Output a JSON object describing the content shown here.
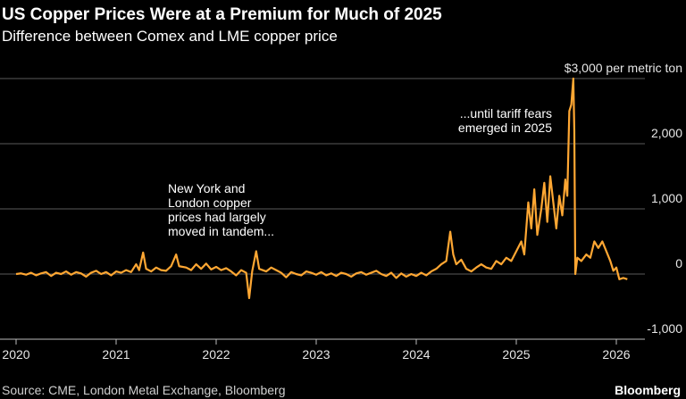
{
  "chart_data": {
    "type": "line",
    "title": "US Copper Prices Were at a Premium for Much of 2025",
    "subtitle": "Difference between Comex and LME copper price",
    "source": "Source: CME, London Metal Exchange, Bloomberg",
    "brand": "Bloomberg",
    "annotations": [
      {
        "lines": [
          "New York and",
          "London copper",
          "prices had largely",
          "moved in tandem..."
        ]
      },
      {
        "lines": [
          "...until tariff fears",
          "emerged in 2025"
        ]
      }
    ],
    "xlim": [
      2020,
      2026.5
    ],
    "xticks": [
      2020,
      2021,
      2022,
      2023,
      2024,
      2025,
      2026
    ],
    "ylim": [
      -1000,
      3000
    ],
    "yticks": [
      {
        "value": -1000,
        "label": "-1,000"
      },
      0,
      {
        "value": 1000,
        "label": "1,000"
      },
      {
        "value": 2000,
        "label": "2,000"
      },
      {
        "value": 3000,
        "label": "$3,000 per metric ton"
      }
    ],
    "grid": true,
    "series": [
      {
        "color": "#ffa733",
        "x": [
          2020.0,
          2020.05,
          2020.1,
          2020.15,
          2020.2,
          2020.25,
          2020.3,
          2020.35,
          2020.4,
          2020.45,
          2020.5,
          2020.55,
          2020.6,
          2020.65,
          2020.7,
          2020.75,
          2020.8,
          2020.85,
          2020.9,
          2020.95,
          2021.0,
          2021.05,
          2021.1,
          2021.15,
          2021.2,
          2021.23,
          2021.27,
          2021.3,
          2021.35,
          2021.4,
          2021.45,
          2021.5,
          2021.55,
          2021.6,
          2021.63,
          2021.7,
          2021.75,
          2021.8,
          2021.85,
          2021.9,
          2021.95,
          2022.0,
          2022.05,
          2022.1,
          2022.15,
          2022.2,
          2022.25,
          2022.3,
          2022.33,
          2022.36,
          2022.4,
          2022.43,
          2022.5,
          2022.55,
          2022.6,
          2022.65,
          2022.7,
          2022.75,
          2022.8,
          2022.85,
          2022.9,
          2022.95,
          2023.0,
          2023.05,
          2023.1,
          2023.15,
          2023.2,
          2023.25,
          2023.3,
          2023.35,
          2023.4,
          2023.45,
          2023.5,
          2023.55,
          2023.6,
          2023.65,
          2023.7,
          2023.75,
          2023.8,
          2023.85,
          2023.9,
          2023.95,
          2024.0,
          2024.05,
          2024.1,
          2024.15,
          2024.2,
          2024.25,
          2024.3,
          2024.34,
          2024.37,
          2024.4,
          2024.45,
          2024.5,
          2024.55,
          2024.6,
          2024.65,
          2024.7,
          2024.75,
          2024.8,
          2024.85,
          2024.9,
          2024.95,
          2025.0,
          2025.05,
          2025.08,
          2025.12,
          2025.15,
          2025.18,
          2025.21,
          2025.25,
          2025.28,
          2025.31,
          2025.34,
          2025.37,
          2025.4,
          2025.43,
          2025.46,
          2025.49,
          2025.51,
          2025.53,
          2025.55,
          2025.57,
          2025.58,
          2025.59,
          2025.61,
          2025.65,
          2025.7,
          2025.74,
          2025.78,
          2025.82,
          2025.86,
          2025.9,
          2025.94,
          2025.97,
          2026.0,
          2026.03,
          2026.07,
          2026.11
        ],
        "values": [
          0,
          10,
          -10,
          20,
          -20,
          10,
          30,
          -30,
          20,
          0,
          40,
          -10,
          30,
          10,
          -40,
          20,
          50,
          0,
          30,
          -20,
          40,
          20,
          60,
          30,
          150,
          60,
          330,
          80,
          40,
          100,
          60,
          50,
          120,
          300,
          120,
          100,
          60,
          150,
          80,
          160,
          70,
          110,
          60,
          90,
          40,
          -20,
          60,
          20,
          -370,
          40,
          350,
          80,
          40,
          100,
          60,
          20,
          -50,
          30,
          0,
          -20,
          40,
          20,
          -10,
          30,
          -20,
          10,
          -30,
          20,
          0,
          -40,
          10,
          30,
          -10,
          20,
          50,
          0,
          -30,
          20,
          -60,
          10,
          -40,
          0,
          -30,
          20,
          -20,
          40,
          80,
          150,
          200,
          650,
          300,
          150,
          220,
          80,
          40,
          100,
          150,
          100,
          80,
          200,
          150,
          250,
          200,
          350,
          500,
          300,
          1100,
          700,
          1300,
          600,
          1000,
          1400,
          800,
          1500,
          1100,
          700,
          1200,
          900,
          1450,
          1200,
          2500,
          2600,
          3000,
          2200,
          0,
          250,
          200,
          300,
          250,
          500,
          400,
          500,
          350,
          200,
          50,
          100,
          -80,
          -60,
          -80
        ]
      }
    ]
  }
}
